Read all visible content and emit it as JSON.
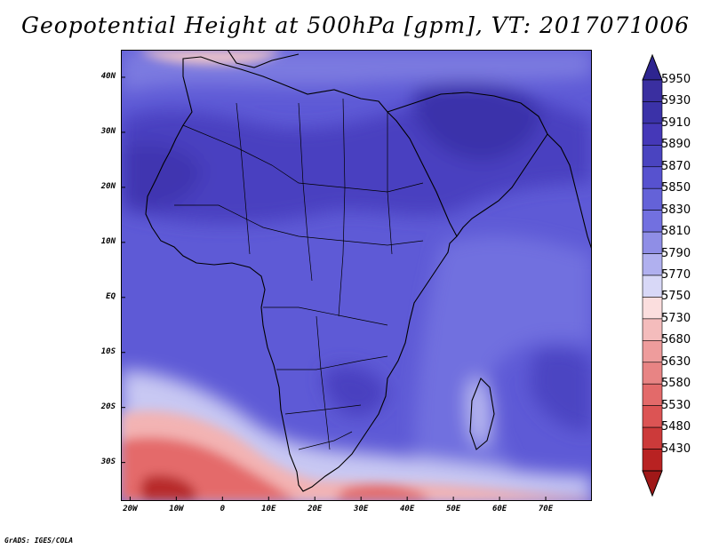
{
  "title": "Geopotential Height at 500hPa [gpm], VT: 2017071006",
  "footer": "GrADS: IGES/COLA",
  "map": {
    "lat_labels": [
      "40N",
      "30N",
      "20N",
      "10N",
      "EQ",
      "10S",
      "20S",
      "30S"
    ],
    "lat_values": [
      40,
      30,
      20,
      10,
      0,
      -10,
      -20,
      -30
    ],
    "lon_labels": [
      "20W",
      "10W",
      "0",
      "10E",
      "20E",
      "30E",
      "40E",
      "50E",
      "60E",
      "70E"
    ],
    "lon_values": [
      -20,
      -10,
      0,
      10,
      20,
      30,
      40,
      50,
      60,
      70
    ],
    "lon_range": [
      -22,
      80
    ],
    "lat_range": [
      -37,
      45
    ]
  },
  "colorbar": {
    "levels": [
      "5950",
      "5930",
      "5910",
      "5890",
      "5870",
      "5850",
      "5830",
      "5810",
      "5790",
      "5770",
      "5750",
      "5730",
      "5680",
      "5630",
      "5580",
      "5530",
      "5480",
      "5430"
    ],
    "colors": [
      "#3a2fa0",
      "#3b32a8",
      "#4538b8",
      "#4a44c0",
      "#5752cf",
      "#6462d8",
      "#7270e0",
      "#8f8ee6",
      "#b0b0ef",
      "#d8d8f7",
      "#fbdede",
      "#f4bcbc",
      "#ee9c9c",
      "#e88484",
      "#e36a6a",
      "#dc5454",
      "#cc3a3a",
      "#b82222"
    ],
    "top_arrow_color": "#2e2590",
    "bottom_arrow_color": "#a01818"
  }
}
